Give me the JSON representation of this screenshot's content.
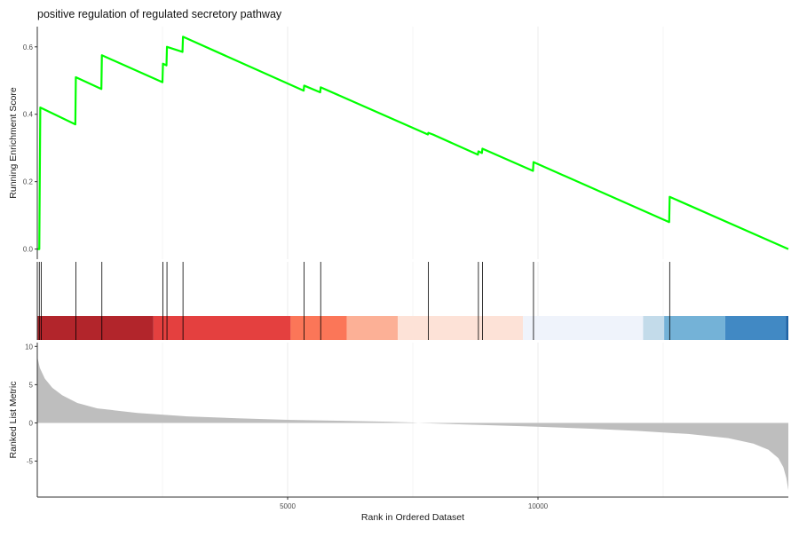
{
  "chart_data": {
    "type": "line",
    "title": "positive regulation of regulated secretory pathway",
    "xlabel": "Rank in Ordered Dataset",
    "x_ticks": [
      5000,
      10000
    ],
    "xlim": [
      0,
      15000
    ],
    "grid": true,
    "panels": [
      {
        "name": "running-enrichment",
        "ylabel": "Running Enrichment Score",
        "ylim": [
          -0.03,
          0.66
        ],
        "y_ticks": [
          0.0,
          0.2,
          0.4,
          0.6
        ],
        "y_tick_labels": [
          "0.0",
          "0.2",
          "0.4",
          "0.6"
        ],
        "line_color": "#00ff00",
        "points": [
          [
            0,
            0.0
          ],
          [
            40,
            0.0
          ],
          [
            60,
            0.42
          ],
          [
            760,
            0.37
          ],
          [
            770,
            0.51
          ],
          [
            1280,
            0.475
          ],
          [
            1290,
            0.575
          ],
          [
            2500,
            0.495
          ],
          [
            2510,
            0.55
          ],
          [
            2580,
            0.545
          ],
          [
            2590,
            0.6
          ],
          [
            2900,
            0.585
          ],
          [
            2910,
            0.63
          ],
          [
            5320,
            0.47
          ],
          [
            5330,
            0.485
          ],
          [
            5650,
            0.465
          ],
          [
            5660,
            0.48
          ],
          [
            7800,
            0.34
          ],
          [
            7810,
            0.345
          ],
          [
            7900,
            0.34
          ],
          [
            8800,
            0.28
          ],
          [
            8810,
            0.29
          ],
          [
            8880,
            0.285
          ],
          [
            8890,
            0.298
          ],
          [
            9900,
            0.232
          ],
          [
            9910,
            0.258
          ],
          [
            12620,
            0.08
          ],
          [
            12630,
            0.155
          ],
          [
            15000,
            0.0
          ]
        ]
      },
      {
        "name": "gene-hits",
        "hits": [
          40,
          80,
          770,
          1290,
          2510,
          2590,
          2910,
          5330,
          5660,
          7810,
          8810,
          8890,
          9910,
          12630
        ],
        "color_bands": [
          {
            "from": 0,
            "to": 2320,
            "color": "#b2252b"
          },
          {
            "from": 2320,
            "to": 5060,
            "color": "#e4403f"
          },
          {
            "from": 5060,
            "to": 6180,
            "color": "#fb7658"
          },
          {
            "from": 6180,
            "to": 7200,
            "color": "#fcb096"
          },
          {
            "from": 7200,
            "to": 9700,
            "color": "#fde2d7"
          },
          {
            "from": 9700,
            "to": 12100,
            "color": "#eff3fb"
          },
          {
            "from": 12100,
            "to": 12520,
            "color": "#c3dbea"
          },
          {
            "from": 12520,
            "to": 13740,
            "color": "#74b2d7"
          },
          {
            "from": 13740,
            "to": 14950,
            "color": "#4189c4"
          },
          {
            "from": 14950,
            "to": 15000,
            "color": "#1e63a6"
          }
        ]
      },
      {
        "name": "ranked-list",
        "ylabel": "Ranked List Metric",
        "ylim": [
          -9.7,
          10.5
        ],
        "y_ticks": [
          -5,
          0,
          5,
          10
        ],
        "y_tick_labels": [
          "-5",
          "0",
          "5",
          "10"
        ],
        "fill_color": "#bebebe",
        "points": [
          [
            0,
            8.7
          ],
          [
            50,
            7.2
          ],
          [
            150,
            5.8
          ],
          [
            300,
            4.6
          ],
          [
            500,
            3.6
          ],
          [
            800,
            2.6
          ],
          [
            1200,
            1.9
          ],
          [
            2000,
            1.3
          ],
          [
            3000,
            0.85
          ],
          [
            4000,
            0.6
          ],
          [
            5000,
            0.4
          ],
          [
            6000,
            0.28
          ],
          [
            7000,
            0.15
          ],
          [
            7500,
            0.05
          ],
          [
            7600,
            0.0
          ],
          [
            8000,
            -0.1
          ],
          [
            9000,
            -0.3
          ],
          [
            10000,
            -0.5
          ],
          [
            11000,
            -0.75
          ],
          [
            12000,
            -1.05
          ],
          [
            13000,
            -1.45
          ],
          [
            13800,
            -2.0
          ],
          [
            14300,
            -2.7
          ],
          [
            14600,
            -3.5
          ],
          [
            14800,
            -4.6
          ],
          [
            14900,
            -5.8
          ],
          [
            14960,
            -7.2
          ],
          [
            15000,
            -8.8
          ]
        ]
      }
    ]
  }
}
